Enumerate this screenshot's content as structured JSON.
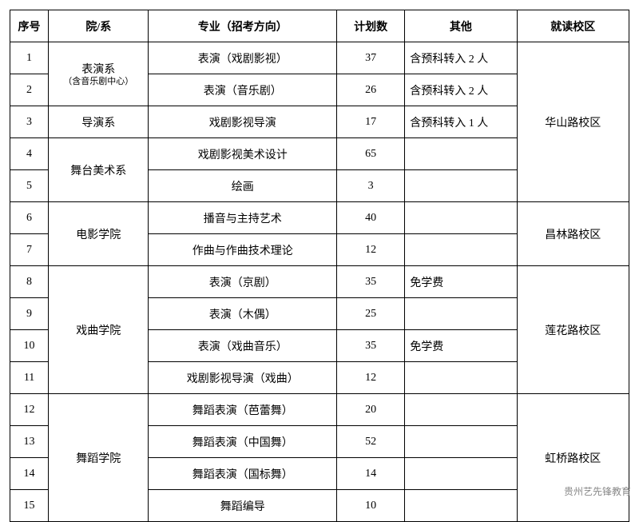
{
  "header": {
    "seq": "序号",
    "dept": "院/系",
    "major": "专业（招考方向）",
    "plan": "计划数",
    "other": "其他",
    "campus": "就读校区"
  },
  "depts": {
    "performance": "表演系",
    "performance_sub": "（含音乐剧中心）",
    "directing": "导演系",
    "stage_art": "舞台美术系",
    "film": "电影学院",
    "opera": "戏曲学院",
    "dance": "舞蹈学院"
  },
  "campuses": {
    "huashan": "华山路校区",
    "changlin": "昌林路校区",
    "lianhua": "莲花路校区",
    "hongqiao": "虹桥路校区"
  },
  "rows": {
    "r1": {
      "seq": "1",
      "major": "表演（戏剧影视）",
      "plan": "37",
      "other": "含预科转入 2 人"
    },
    "r2": {
      "seq": "2",
      "major": "表演（音乐剧）",
      "plan": "26",
      "other": "含预科转入 2 人"
    },
    "r3": {
      "seq": "3",
      "major": "戏剧影视导演",
      "plan": "17",
      "other": "含预科转入 1 人"
    },
    "r4": {
      "seq": "4",
      "major": "戏剧影视美术设计",
      "plan": "65",
      "other": ""
    },
    "r5": {
      "seq": "5",
      "major": "绘画",
      "plan": "3",
      "other": ""
    },
    "r6": {
      "seq": "6",
      "major": "播音与主持艺术",
      "plan": "40",
      "other": ""
    },
    "r7": {
      "seq": "7",
      "major": "作曲与作曲技术理论",
      "plan": "12",
      "other": ""
    },
    "r8": {
      "seq": "8",
      "major": "表演（京剧）",
      "plan": "35",
      "other": "免学费"
    },
    "r9": {
      "seq": "9",
      "major": "表演（木偶）",
      "plan": "25",
      "other": ""
    },
    "r10": {
      "seq": "10",
      "major": "表演（戏曲音乐）",
      "plan": "35",
      "other": "免学费"
    },
    "r11": {
      "seq": "11",
      "major": "戏剧影视导演（戏曲）",
      "plan": "12",
      "other": ""
    },
    "r12": {
      "seq": "12",
      "major": "舞蹈表演（芭蕾舞）",
      "plan": "20",
      "other": ""
    },
    "r13": {
      "seq": "13",
      "major": "舞蹈表演（中国舞）",
      "plan": "52",
      "other": ""
    },
    "r14": {
      "seq": "14",
      "major": "舞蹈表演（国标舞）",
      "plan": "14",
      "other": ""
    },
    "r15": {
      "seq": "15",
      "major": "舞蹈编导",
      "plan": "10",
      "other": ""
    }
  },
  "watermark": "贵州艺先锋教育"
}
